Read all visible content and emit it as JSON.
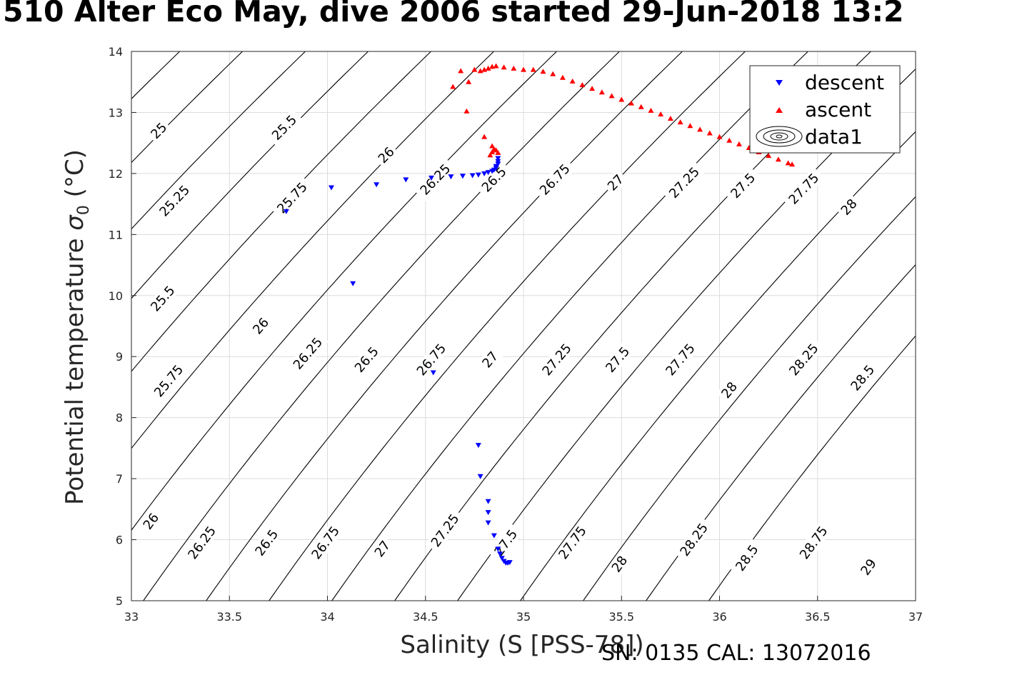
{
  "title": "510 Alter Eco May, dive 2006 started 29-Jun-2018 13:2",
  "footer": "SN: 0135  CAL: 13072016",
  "chart_data": {
    "type": "scatter",
    "xlabel": "Salinity (S [PSS-78])",
    "ylabel_main": "Potential temperature ",
    "ylabel_sym": "σ",
    "ylabel_sub": "0",
    "ylabel_unit": " (°C)",
    "xlim": [
      33,
      37
    ],
    "ylim": [
      5,
      14
    ],
    "xticks": [
      "33",
      "33.5",
      "34",
      "34.5",
      "35",
      "35.5",
      "36",
      "36.5",
      "37"
    ],
    "yticks": [
      "5",
      "6",
      "7",
      "8",
      "9",
      "10",
      "11",
      "12",
      "13",
      "14"
    ],
    "grid": true,
    "legend_position": "top-right",
    "legend": [
      "descent",
      "ascent",
      "data1"
    ],
    "colors": {
      "descent": "#0000ff",
      "ascent": "#ff0000",
      "contour": "#000000",
      "grid": "#dcdcdc"
    },
    "contour_levels": [
      25,
      25.25,
      25.5,
      25.75,
      26,
      26.25,
      26.5,
      26.75,
      27,
      27.25,
      27.5,
      27.75,
      28,
      28.25,
      28.5,
      28.75,
      29
    ],
    "contour_labels": [
      {
        "text": "25",
        "x": 33.14,
        "y": 12.7
      },
      {
        "text": "25.5",
        "x": 33.78,
        "y": 12.75
      },
      {
        "text": "26",
        "x": 34.3,
        "y": 12.3
      },
      {
        "text": "25.25",
        "x": 33.22,
        "y": 11.55
      },
      {
        "text": "25.75",
        "x": 33.82,
        "y": 11.6
      },
      {
        "text": "26.25",
        "x": 34.55,
        "y": 11.9
      },
      {
        "text": "26.5",
        "x": 34.85,
        "y": 11.9
      },
      {
        "text": "26.75",
        "x": 35.16,
        "y": 11.9
      },
      {
        "text": "27",
        "x": 35.47,
        "y": 11.85
      },
      {
        "text": "27.25",
        "x": 35.82,
        "y": 11.85
      },
      {
        "text": "27.5",
        "x": 36.12,
        "y": 11.8
      },
      {
        "text": "27.75",
        "x": 36.43,
        "y": 11.75
      },
      {
        "text": "28",
        "x": 36.66,
        "y": 11.45
      },
      {
        "text": "25.5",
        "x": 33.16,
        "y": 9.95
      },
      {
        "text": "26",
        "x": 33.66,
        "y": 9.5
      },
      {
        "text": "26.25",
        "x": 33.9,
        "y": 9.05
      },
      {
        "text": "26.5",
        "x": 34.2,
        "y": 8.95
      },
      {
        "text": "26.75",
        "x": 34.53,
        "y": 8.95
      },
      {
        "text": "27",
        "x": 34.83,
        "y": 8.95
      },
      {
        "text": "27.25",
        "x": 35.17,
        "y": 8.95
      },
      {
        "text": "27.5",
        "x": 35.48,
        "y": 8.95
      },
      {
        "text": "27.75",
        "x": 35.8,
        "y": 8.95
      },
      {
        "text": "28",
        "x": 36.05,
        "y": 8.45
      },
      {
        "text": "28.25",
        "x": 36.43,
        "y": 8.95
      },
      {
        "text": "28.5",
        "x": 36.73,
        "y": 8.65
      },
      {
        "text": "25.75",
        "x": 33.19,
        "y": 8.6
      },
      {
        "text": "26",
        "x": 33.1,
        "y": 6.3
      },
      {
        "text": "26.25",
        "x": 33.36,
        "y": 5.95
      },
      {
        "text": "26.5",
        "x": 33.69,
        "y": 5.95
      },
      {
        "text": "26.75",
        "x": 33.99,
        "y": 5.95
      },
      {
        "text": "27",
        "x": 34.28,
        "y": 5.85
      },
      {
        "text": "27.25",
        "x": 34.6,
        "y": 6.15
      },
      {
        "text": "27.5",
        "x": 34.91,
        "y": 5.95
      },
      {
        "text": "27.75",
        "x": 35.25,
        "y": 5.95
      },
      {
        "text": "28",
        "x": 35.49,
        "y": 5.6
      },
      {
        "text": "28.25",
        "x": 35.87,
        "y": 6.0
      },
      {
        "text": "28.5",
        "x": 36.14,
        "y": 5.7
      },
      {
        "text": "28.75",
        "x": 36.48,
        "y": 5.95
      },
      {
        "text": "29",
        "x": 36.76,
        "y": 5.55
      }
    ],
    "series": [
      {
        "name": "descent",
        "marker": "triangle-down",
        "x": [
          33.79,
          34.02,
          34.25,
          34.4,
          34.53,
          34.63,
          34.69,
          34.74,
          34.77,
          34.8,
          34.82,
          34.84,
          34.85,
          34.86,
          34.86,
          34.87,
          34.87,
          34.87,
          34.13,
          34.54,
          34.77,
          34.78,
          34.82,
          34.82,
          34.82,
          34.85,
          34.87,
          34.88,
          34.89,
          34.9,
          34.91,
          34.92,
          34.93
        ],
        "y": [
          11.38,
          11.77,
          11.82,
          11.9,
          11.93,
          11.95,
          11.96,
          11.97,
          11.98,
          12.0,
          12.02,
          12.04,
          12.06,
          12.09,
          12.12,
          12.16,
          12.2,
          12.25,
          10.2,
          8.74,
          7.55,
          7.04,
          6.63,
          6.45,
          6.28,
          6.07,
          5.85,
          5.77,
          5.7,
          5.65,
          5.62,
          5.62,
          5.63
        ]
      },
      {
        "name": "ascent",
        "marker": "triangle-up",
        "x": [
          36.37,
          36.35,
          36.3,
          36.25,
          36.2,
          36.15,
          36.1,
          36.05,
          36.0,
          35.95,
          35.9,
          35.85,
          35.8,
          35.75,
          35.7,
          35.65,
          35.6,
          35.55,
          35.5,
          35.45,
          35.4,
          35.35,
          35.3,
          35.25,
          35.2,
          35.15,
          35.1,
          35.05,
          35.0,
          34.95,
          34.9,
          34.86,
          34.84,
          34.82,
          34.8,
          34.78,
          34.75,
          34.72,
          34.68,
          34.64,
          34.71,
          34.8,
          34.84,
          34.85,
          34.83,
          34.84,
          34.86,
          34.87
        ],
        "y": [
          12.15,
          12.17,
          12.23,
          12.29,
          12.35,
          12.42,
          12.48,
          12.54,
          12.6,
          12.66,
          12.72,
          12.78,
          12.84,
          12.9,
          12.97,
          13.03,
          13.09,
          13.15,
          13.21,
          13.27,
          13.33,
          13.39,
          13.45,
          13.51,
          13.57,
          13.63,
          13.67,
          13.7,
          13.7,
          13.72,
          13.74,
          13.76,
          13.75,
          13.72,
          13.7,
          13.68,
          13.7,
          13.5,
          13.68,
          13.42,
          13.02,
          12.6,
          12.45,
          12.4,
          12.3,
          12.35,
          12.38,
          12.34
        ]
      }
    ]
  }
}
